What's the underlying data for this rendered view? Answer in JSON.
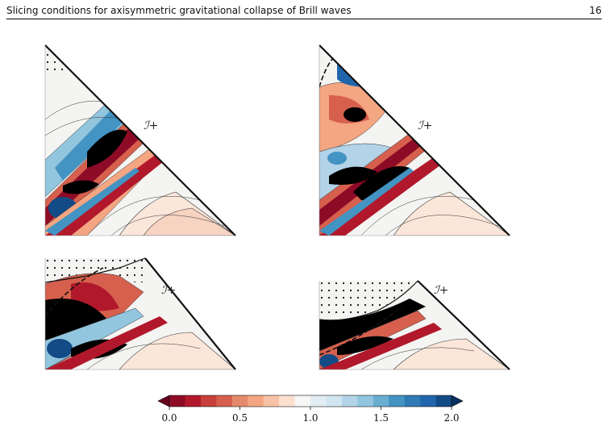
{
  "header": {
    "title": "Slicing conditions for axisymmetric gravitational collapse of Brill waves",
    "page_number": "16"
  },
  "panels": [
    {
      "scri_label": "ℐ+"
    },
    {
      "scri_label": "ℐ+"
    },
    {
      "scri_label": "ℐ+"
    },
    {
      "scri_label": "ℐ+"
    }
  ],
  "colorbar": {
    "colors": [
      "#67001f",
      "#8e0b27",
      "#b2182b",
      "#c7403b",
      "#d6604d",
      "#e48a6c",
      "#f4a582",
      "#f7c2a5",
      "#fbe0d0",
      "#f7f7f7",
      "#e2edf3",
      "#d1e5f0",
      "#b2d3e8",
      "#92c5de",
      "#6aaed2",
      "#4393c3",
      "#2f79b5",
      "#2166ac",
      "#134b87",
      "#053061"
    ],
    "tick_labels": [
      "0.0",
      "0.5",
      "1.0",
      "1.5",
      "2.0"
    ],
    "ticks": [
      0.0,
      0.5,
      1.0,
      1.5,
      2.0
    ],
    "range": [
      0.0,
      2.0
    ]
  }
}
